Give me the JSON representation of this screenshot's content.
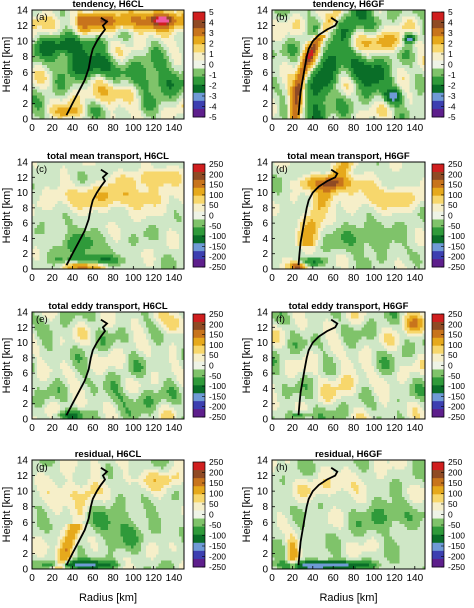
{
  "chart_data": [
    {
      "type": "heatmap",
      "panel": "(a)",
      "title": "tendency, H6CL",
      "xlabel": "",
      "ylabel": "Height [km]",
      "xlim": [
        0,
        150
      ],
      "ylim": [
        0,
        14
      ],
      "xticks": [
        "0",
        "20",
        "40",
        "60",
        "80",
        "100",
        "120",
        "140"
      ],
      "yticks": [
        "0",
        "2",
        "4",
        "6",
        "8",
        "10",
        "12",
        "14"
      ],
      "colorbar": {
        "min": -5,
        "max": 5,
        "ticks": [
          "5",
          "4",
          "3",
          "2",
          "1",
          "0",
          "-1",
          "-2",
          "-3",
          "-4",
          "-5"
        ]
      },
      "rmw_line": {
        "x": [
          34,
          40,
          46,
          52,
          56,
          58,
          60,
          64,
          68,
          72,
          70,
          74,
          68
        ],
        "y": [
          0.5,
          2,
          3.5,
          5,
          6.5,
          8,
          9,
          10,
          10.8,
          11.5,
          12,
          12.5,
          13
        ]
      }
    },
    {
      "type": "heatmap",
      "panel": "(b)",
      "title": "tendency, H6GF",
      "xlabel": "",
      "ylabel": "Height [km]",
      "xlim": [
        0,
        150
      ],
      "ylim": [
        0,
        14
      ],
      "xticks": [
        "0",
        "20",
        "40",
        "60",
        "80",
        "100",
        "120",
        "140"
      ],
      "yticks": [
        "0",
        "2",
        "4",
        "6",
        "8",
        "10",
        "12",
        "14"
      ],
      "colorbar": {
        "min": -5,
        "max": 5,
        "ticks": [
          "5",
          "4",
          "3",
          "2",
          "1",
          "0",
          "-1",
          "-2",
          "-3",
          "-4",
          "-5"
        ]
      },
      "rmw_line": {
        "x": [
          26,
          27,
          28,
          30,
          32,
          34,
          36,
          40,
          46,
          54,
          62,
          64,
          58
        ],
        "y": [
          0.5,
          2,
          3.5,
          5,
          6.5,
          8,
          9,
          10,
          10.8,
          11.5,
          12,
          12.5,
          13
        ]
      }
    },
    {
      "type": "heatmap",
      "panel": "(c)",
      "title": "total mean transport, H6CL",
      "xlabel": "",
      "ylabel": "Height [km]",
      "xlim": [
        0,
        150
      ],
      "ylim": [
        0,
        14
      ],
      "xticks": [
        "0",
        "20",
        "40",
        "60",
        "80",
        "100",
        "120",
        "140"
      ],
      "yticks": [
        "0",
        "2",
        "4",
        "6",
        "8",
        "10",
        "12",
        "14"
      ],
      "colorbar": {
        "min": -250,
        "max": 250,
        "ticks": [
          "250",
          "200",
          "150",
          "100",
          "50",
          "0",
          "-50",
          "-100",
          "-150",
          "-200",
          "-250"
        ]
      },
      "rmw_line": {
        "x": [
          34,
          40,
          46,
          52,
          56,
          58,
          60,
          64,
          68,
          72,
          70,
          74,
          68
        ],
        "y": [
          0.5,
          2,
          3.5,
          5,
          6.5,
          8,
          9,
          10,
          10.8,
          11.5,
          12,
          12.5,
          13
        ]
      }
    },
    {
      "type": "heatmap",
      "panel": "(d)",
      "title": "total mean transport, H6GF",
      "xlabel": "",
      "ylabel": "Height [km]",
      "xlim": [
        0,
        150
      ],
      "ylim": [
        0,
        14
      ],
      "xticks": [
        "0",
        "20",
        "40",
        "60",
        "80",
        "100",
        "120",
        "140"
      ],
      "yticks": [
        "0",
        "2",
        "4",
        "6",
        "8",
        "10",
        "12",
        "14"
      ],
      "colorbar": {
        "min": -250,
        "max": 250,
        "ticks": [
          "250",
          "200",
          "150",
          "100",
          "50",
          "0",
          "-50",
          "-100",
          "-150",
          "-200",
          "-250"
        ]
      },
      "rmw_line": {
        "x": [
          26,
          27,
          28,
          30,
          32,
          34,
          36,
          40,
          46,
          54,
          62,
          64,
          58
        ],
        "y": [
          0.5,
          2,
          3.5,
          5,
          6.5,
          8,
          9,
          10,
          10.8,
          11.5,
          12,
          12.5,
          13
        ]
      }
    },
    {
      "type": "heatmap",
      "panel": "(e)",
      "title": "total eddy transport, H6CL",
      "xlabel": "",
      "ylabel": "Height [km]",
      "xlim": [
        0,
        150
      ],
      "ylim": [
        0,
        14
      ],
      "xticks": [
        "0",
        "20",
        "40",
        "60",
        "80",
        "100",
        "120",
        "140"
      ],
      "yticks": [
        "0",
        "2",
        "4",
        "6",
        "8",
        "10",
        "12",
        "14"
      ],
      "colorbar": {
        "min": -250,
        "max": 250,
        "ticks": [
          "250",
          "200",
          "150",
          "100",
          "50",
          "0",
          "-50",
          "-100",
          "-150",
          "-200",
          "-250"
        ]
      },
      "rmw_line": {
        "x": [
          34,
          40,
          46,
          52,
          56,
          58,
          60,
          64,
          68,
          72,
          70,
          74,
          68
        ],
        "y": [
          0.5,
          2,
          3.5,
          5,
          6.5,
          8,
          9,
          10,
          10.8,
          11.5,
          12,
          12.5,
          13
        ]
      }
    },
    {
      "type": "heatmap",
      "panel": "(f)",
      "title": "total eddy transport, H6GF",
      "xlabel": "",
      "ylabel": "Height [km]",
      "xlim": [
        0,
        150
      ],
      "ylim": [
        0,
        14
      ],
      "xticks": [
        "0",
        "20",
        "40",
        "60",
        "80",
        "100",
        "120",
        "140"
      ],
      "yticks": [
        "0",
        "2",
        "4",
        "6",
        "8",
        "10",
        "12",
        "14"
      ],
      "colorbar": {
        "min": -250,
        "max": 250,
        "ticks": [
          "250",
          "200",
          "150",
          "100",
          "50",
          "0",
          "-50",
          "-100",
          "-150",
          "-200",
          "-250"
        ]
      },
      "rmw_line": {
        "x": [
          26,
          27,
          28,
          30,
          32,
          34,
          36,
          40,
          46,
          54,
          62,
          64,
          58
        ],
        "y": [
          0.5,
          2,
          3.5,
          5,
          6.5,
          8,
          9,
          10,
          10.8,
          11.5,
          12,
          12.5,
          13
        ]
      }
    },
    {
      "type": "heatmap",
      "panel": "(g)",
      "title": "residual, H6CL",
      "xlabel": "Radius [km]",
      "ylabel": "Height [km]",
      "xlim": [
        0,
        150
      ],
      "ylim": [
        0,
        14
      ],
      "xticks": [
        "0",
        "20",
        "40",
        "60",
        "80",
        "100",
        "120",
        "140"
      ],
      "yticks": [
        "0",
        "2",
        "4",
        "6",
        "8",
        "10",
        "12",
        "14"
      ],
      "colorbar": {
        "min": -250,
        "max": 250,
        "ticks": [
          "250",
          "200",
          "150",
          "100",
          "50",
          "0",
          "-50",
          "-100",
          "-150",
          "-200",
          "-250"
        ]
      },
      "rmw_line": {
        "x": [
          34,
          40,
          46,
          52,
          56,
          58,
          60,
          64,
          68,
          72,
          70,
          74,
          68
        ],
        "y": [
          0.5,
          2,
          3.5,
          5,
          6.5,
          8,
          9,
          10,
          10.8,
          11.5,
          12,
          12.5,
          13
        ]
      }
    },
    {
      "type": "heatmap",
      "panel": "(h)",
      "title": "residual, H6GF",
      "xlabel": "Radius [km]",
      "ylabel": "Height [km]",
      "xlim": [
        0,
        150
      ],
      "ylim": [
        0,
        14
      ],
      "xticks": [
        "0",
        "20",
        "40",
        "60",
        "80",
        "100",
        "120",
        "140"
      ],
      "yticks": [
        "0",
        "2",
        "4",
        "6",
        "8",
        "10",
        "12",
        "14"
      ],
      "colorbar": {
        "min": -250,
        "max": 250,
        "ticks": [
          "250",
          "200",
          "150",
          "100",
          "50",
          "0",
          "-50",
          "-100",
          "-150",
          "-200",
          "-250"
        ]
      },
      "rmw_line": {
        "x": [
          26,
          27,
          28,
          30,
          32,
          34,
          36,
          40,
          46,
          54,
          62,
          64,
          58
        ],
        "y": [
          0.5,
          2,
          3.5,
          5,
          6.5,
          8,
          9,
          10,
          10.8,
          11.5,
          12,
          12.5,
          13
        ]
      }
    }
  ],
  "palette": [
    "#5e1f8c",
    "#3c3fb0",
    "#6f9ad6",
    "#0a6e28",
    "#2f9a3a",
    "#7fc36a",
    "#cfe7c6",
    "#eef3e6",
    "#f6efc9",
    "#f7d76c",
    "#e6a91c",
    "#c8741c",
    "#8f4a24",
    "#d01f1f",
    "#f05aa0"
  ]
}
